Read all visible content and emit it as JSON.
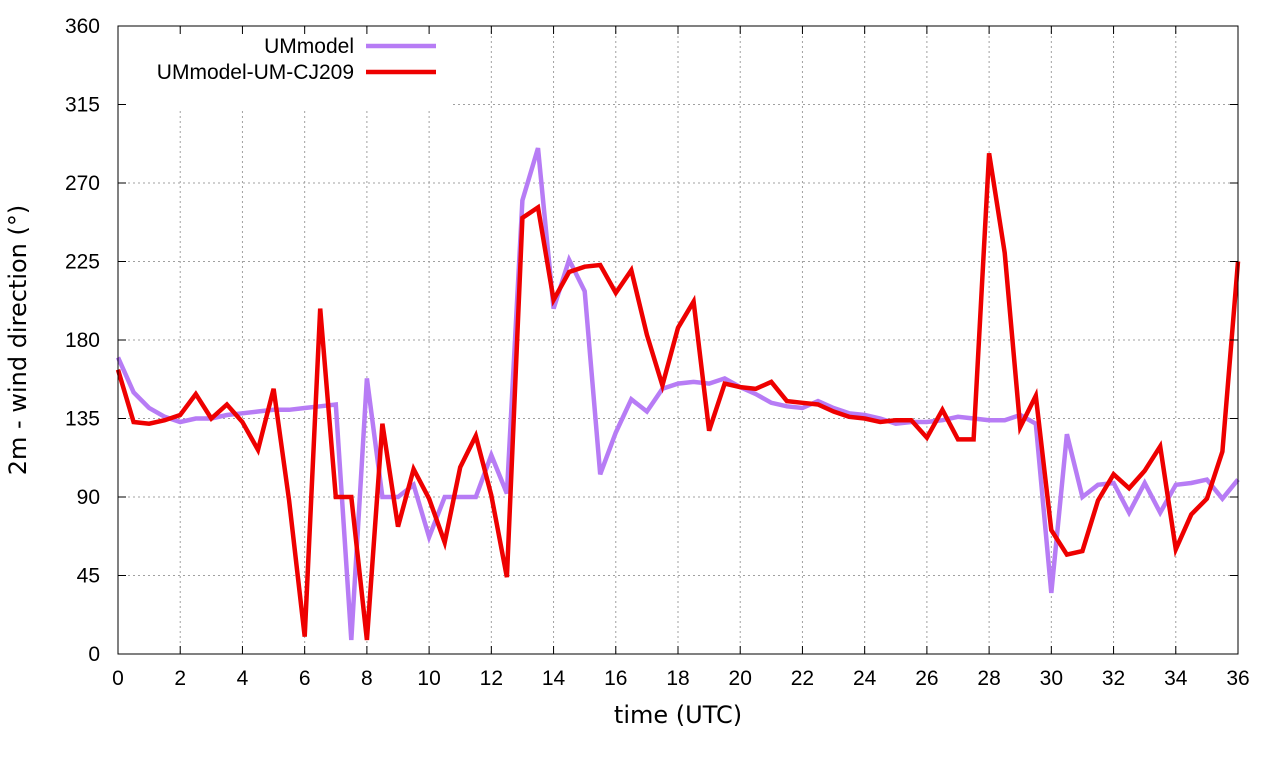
{
  "chart_data": {
    "type": "line",
    "xlabel": "time (UTC)",
    "ylabel": "2m - wind direction (°)",
    "xlim": [
      0,
      36
    ],
    "ylim": [
      0,
      360
    ],
    "xticks": [
      0,
      2,
      4,
      6,
      8,
      10,
      12,
      14,
      16,
      18,
      20,
      22,
      24,
      26,
      28,
      30,
      32,
      34,
      36
    ],
    "yticks": [
      0,
      45,
      90,
      135,
      180,
      225,
      270,
      315,
      360
    ],
    "grid": true,
    "legend_position": "top-left",
    "series": [
      {
        "name": "UMmodel",
        "color": "#b77cf5",
        "x": [
          0,
          0.5,
          1,
          1.5,
          2,
          2.5,
          3,
          3.5,
          4,
          4.5,
          5,
          5.5,
          6,
          6.5,
          7,
          7.5,
          8,
          8.5,
          9,
          9.5,
          10,
          10.5,
          11,
          11.5,
          12,
          12.5,
          13,
          13.5,
          14,
          14.5,
          15,
          15.5,
          16,
          16.5,
          17,
          17.5,
          18,
          18.5,
          19,
          19.5,
          20,
          20.5,
          21,
          21.5,
          22,
          22.5,
          23,
          23.5,
          24,
          24.5,
          25,
          25.5,
          26,
          26.5,
          27,
          27.5,
          28,
          28.5,
          29,
          29.5,
          30,
          30.5,
          31,
          31.5,
          32,
          32.5,
          33,
          33.5,
          34,
          34.5,
          35,
          35.5,
          36
        ],
        "y": [
          170,
          150,
          141,
          136,
          133,
          135,
          135,
          137,
          138,
          139,
          140,
          140,
          141,
          142,
          143,
          8,
          158,
          90,
          90,
          97,
          67,
          90,
          90,
          90,
          114,
          92,
          260,
          290,
          198,
          226,
          208,
          103,
          127,
          146,
          139,
          152,
          155,
          156,
          155,
          158,
          153,
          149,
          144,
          142,
          141,
          145,
          141,
          138,
          137,
          135,
          132,
          133,
          133,
          134,
          136,
          135,
          134,
          134,
          137,
          132,
          35,
          126,
          90,
          97,
          98,
          81,
          98,
          81,
          97,
          98,
          100,
          89,
          100
        ]
      },
      {
        "name": "UMmodel-UM-CJ209",
        "color": "#ee0000",
        "x": [
          0,
          0.5,
          1,
          1.5,
          2,
          2.5,
          3,
          3.5,
          4,
          4.5,
          5,
          5.5,
          6,
          6.5,
          7,
          7.5,
          8,
          8.5,
          9,
          9.5,
          10,
          10.5,
          11,
          11.5,
          12,
          12.5,
          13,
          13.5,
          14,
          14.5,
          15,
          15.5,
          16,
          16.5,
          17,
          17.5,
          18,
          18.5,
          19,
          19.5,
          20,
          20.5,
          21,
          21.5,
          22,
          22.5,
          23,
          23.5,
          24,
          24.5,
          25,
          25.5,
          26,
          26.5,
          27,
          27.5,
          28,
          28.5,
          29,
          29.5,
          30,
          30.5,
          31,
          31.5,
          32,
          32.5,
          33,
          33.5,
          34,
          34.5,
          35,
          35.5,
          36
        ],
        "y": [
          163,
          133,
          132,
          134,
          137,
          149,
          135,
          143,
          133,
          117,
          152,
          88,
          10,
          198,
          90,
          90,
          8,
          132,
          73,
          106,
          89,
          64,
          107,
          125,
          91,
          44,
          250,
          256,
          203,
          219,
          222,
          223,
          207,
          220,
          183,
          154,
          187,
          202,
          128,
          155,
          153,
          152,
          156,
          145,
          144,
          143,
          139,
          136,
          135,
          133,
          134,
          134,
          124,
          140,
          123,
          123,
          287,
          230,
          130,
          148,
          71,
          57,
          59,
          88,
          103,
          95,
          105,
          119,
          60,
          80,
          89,
          116,
          225
        ]
      }
    ]
  }
}
